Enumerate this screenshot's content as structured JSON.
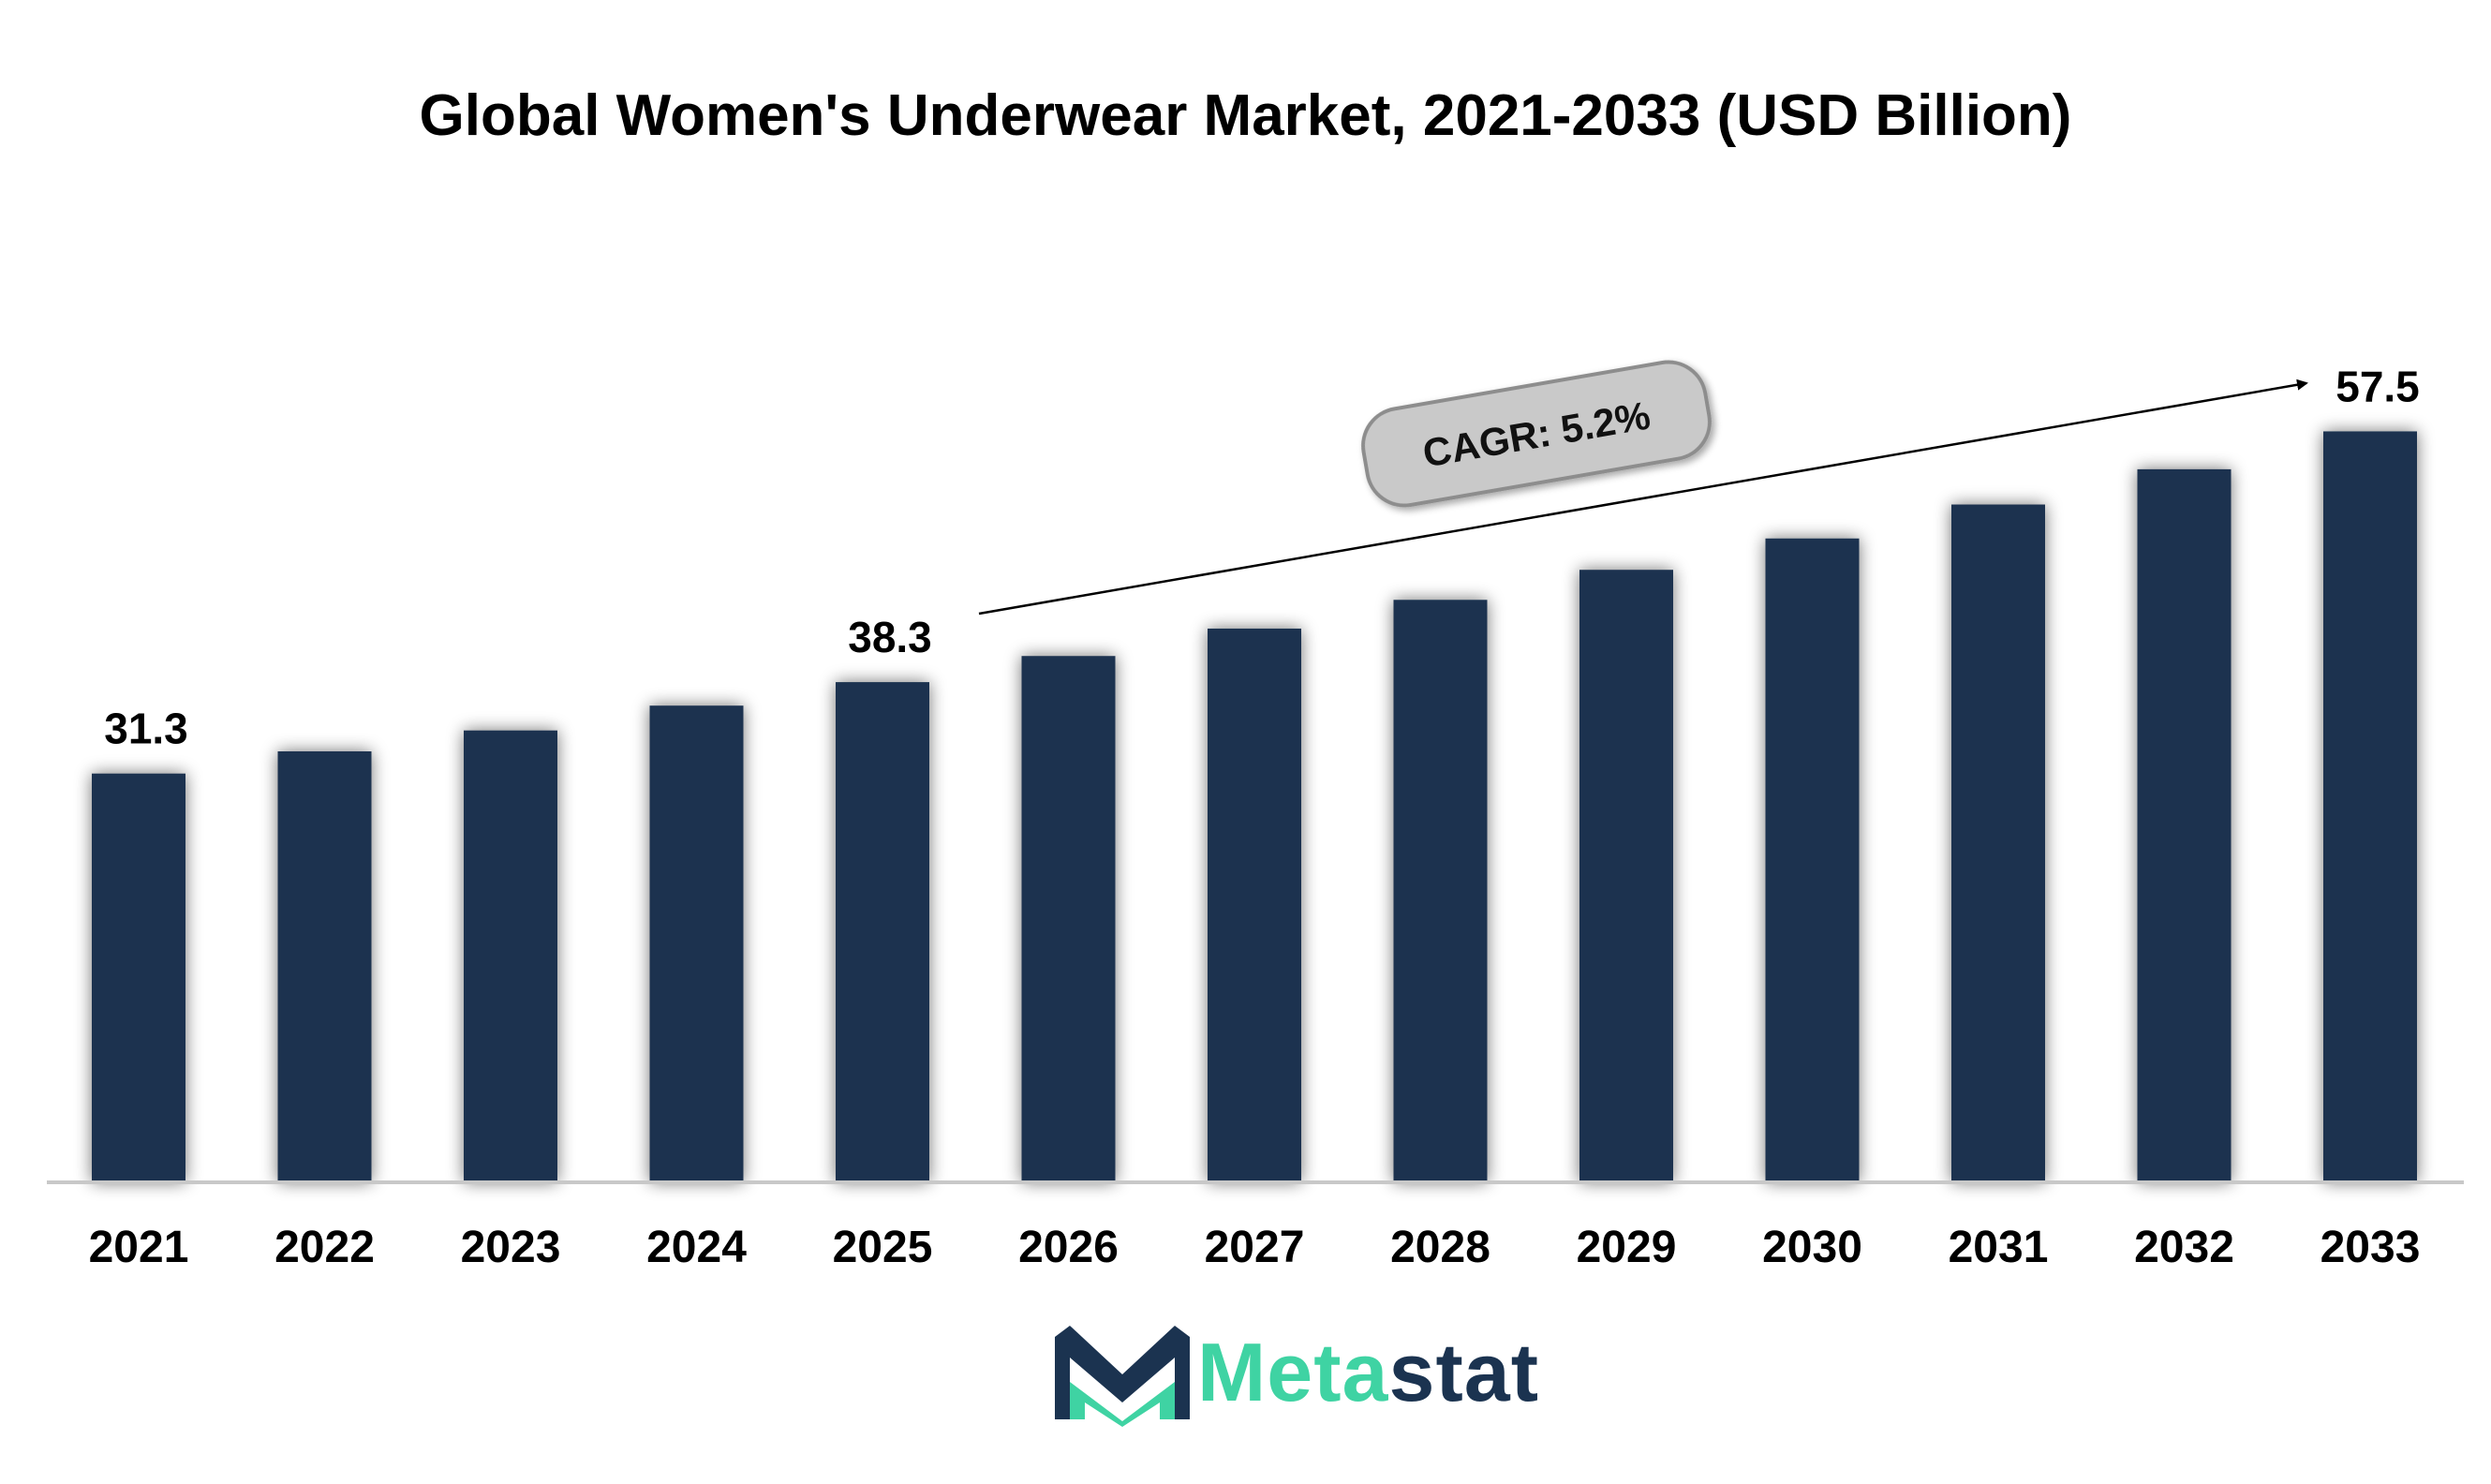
{
  "chart_data": {
    "type": "bar",
    "title": "Global Women's Underwear Market, 2021-2033 (USD Billion)",
    "xlabel": "",
    "ylabel": "",
    "categories": [
      "2021",
      "2022",
      "2023",
      "2024",
      "2025",
      "2026",
      "2027",
      "2028",
      "2029",
      "2030",
      "2031",
      "2032",
      "2033"
    ],
    "values": [
      31.3,
      33.0,
      34.6,
      36.5,
      38.3,
      40.3,
      42.4,
      44.6,
      46.9,
      49.3,
      51.9,
      54.6,
      57.5
    ],
    "data_labels": {
      "2021": "31.3",
      "2025": "38.3",
      "2033": "57.5"
    },
    "ylim": [
      0,
      60
    ],
    "grid": false,
    "bar_color": "#1b3350",
    "annotation": {
      "text": "CAGR: 5.2%",
      "from": "2025",
      "to": "2033"
    }
  },
  "logo": {
    "part1": "Meta",
    "part2": "stat",
    "accent": "#3fd3a3",
    "brand": "#1b3350"
  }
}
